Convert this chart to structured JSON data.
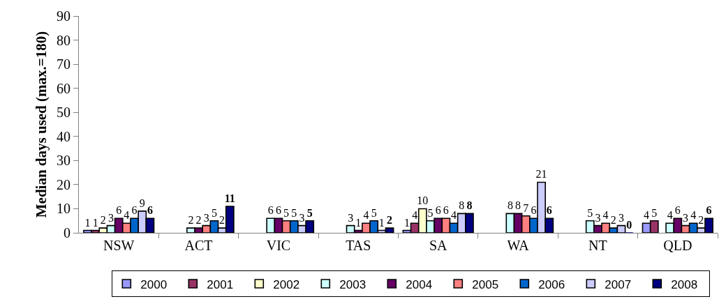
{
  "chart_data": {
    "type": "bar",
    "ylabel": "Median days used (max.=180)",
    "categories": [
      "NSW",
      "ACT",
      "VIC",
      "TAS",
      "SA",
      "WA",
      "NT",
      "QLD"
    ],
    "series": [
      {
        "name": "2000",
        "color": "#9999ff",
        "values": [
          1,
          null,
          null,
          null,
          1,
          null,
          null,
          4
        ]
      },
      {
        "name": "2001",
        "color": "#993366",
        "values": [
          1,
          null,
          null,
          null,
          4,
          null,
          null,
          5
        ]
      },
      {
        "name": "2002",
        "color": "#ffffcc",
        "values": [
          2,
          null,
          null,
          null,
          10,
          null,
          null,
          null
        ]
      },
      {
        "name": "2003",
        "color": "#ccffff",
        "values": [
          3,
          2,
          6,
          3,
          5,
          8,
          5,
          4
        ]
      },
      {
        "name": "2004",
        "color": "#660066",
        "values": [
          6,
          2,
          6,
          1,
          6,
          8,
          3,
          6
        ]
      },
      {
        "name": "2005",
        "color": "#ff8080",
        "values": [
          4,
          3,
          5,
          4,
          6,
          7,
          4,
          3
        ]
      },
      {
        "name": "2006",
        "color": "#0066cc",
        "values": [
          6,
          5,
          5,
          5,
          4,
          6,
          2,
          4
        ]
      },
      {
        "name": "2007",
        "color": "#ccccff",
        "values": [
          9,
          2,
          3,
          1,
          8,
          21,
          3,
          2
        ]
      },
      {
        "name": "2008",
        "color": "#000080",
        "values": [
          6,
          11,
          5,
          2,
          8,
          6,
          0,
          6
        ]
      }
    ],
    "ylim": [
      0,
      90
    ],
    "yticks": [
      0,
      10,
      20,
      30,
      40,
      50,
      60,
      70,
      80,
      90
    ],
    "legend": "bottom",
    "data_labels": true
  }
}
